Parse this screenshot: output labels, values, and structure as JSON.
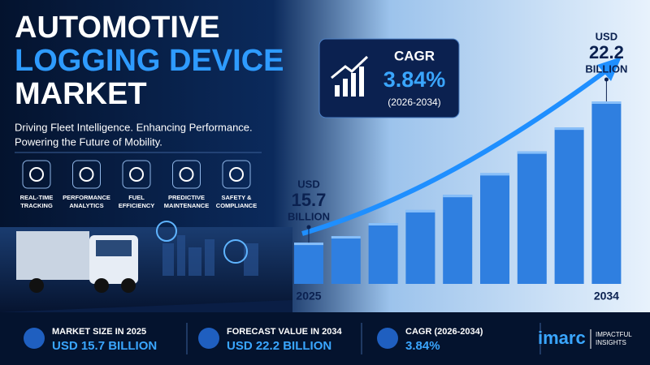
{
  "header": {
    "title_lines": [
      "AUTOMOTIVE",
      "LOGGING DEVICE",
      "MARKET"
    ],
    "subtitle_lines": [
      "Driving Fleet Intelligence. Enhancing Performance.",
      "Powering the Future of Mobility."
    ]
  },
  "features": [
    {
      "lines": [
        "REAL-TIME",
        "TRACKING"
      ]
    },
    {
      "lines": [
        "PERFORMANCE",
        "ANALYTICS"
      ]
    },
    {
      "lines": [
        "FUEL",
        "EFFICIENCY"
      ]
    },
    {
      "lines": [
        "PREDICTIVE",
        "MAINTENANCE"
      ]
    },
    {
      "lines": [
        "SAFETY &",
        "COMPLIANCE"
      ]
    }
  ],
  "cagr_box": {
    "label": "CAGR",
    "value": "3.84%",
    "period": "(2026-2034)"
  },
  "chart_data": {
    "type": "bar",
    "categories": [
      "2025",
      null,
      null,
      null,
      null,
      null,
      null,
      null,
      "2034"
    ],
    "values": [
      15.7,
      16.0,
      16.6,
      17.2,
      17.9,
      18.9,
      19.9,
      21.0,
      22.2
    ],
    "color": "#2f7fe0",
    "ylim": [
      13.8,
      22.2
    ],
    "annotations": {
      "start": [
        "USD",
        "15.7",
        "BILLION"
      ],
      "end": [
        "USD",
        "22.2",
        "BILLION"
      ]
    }
  },
  "stats": [
    {
      "label": "MARKET SIZE IN 2025",
      "value": "USD 15.7 BILLION"
    },
    {
      "label": "FORECAST VALUE IN 2034",
      "value": "USD 22.2 BILLION"
    },
    {
      "label": "CAGR (2026-2034)",
      "value": "3.84%"
    }
  ],
  "logo": {
    "name": "imarc",
    "tagline": [
      "IMPACTFUL",
      "INSIGHTS"
    ]
  }
}
